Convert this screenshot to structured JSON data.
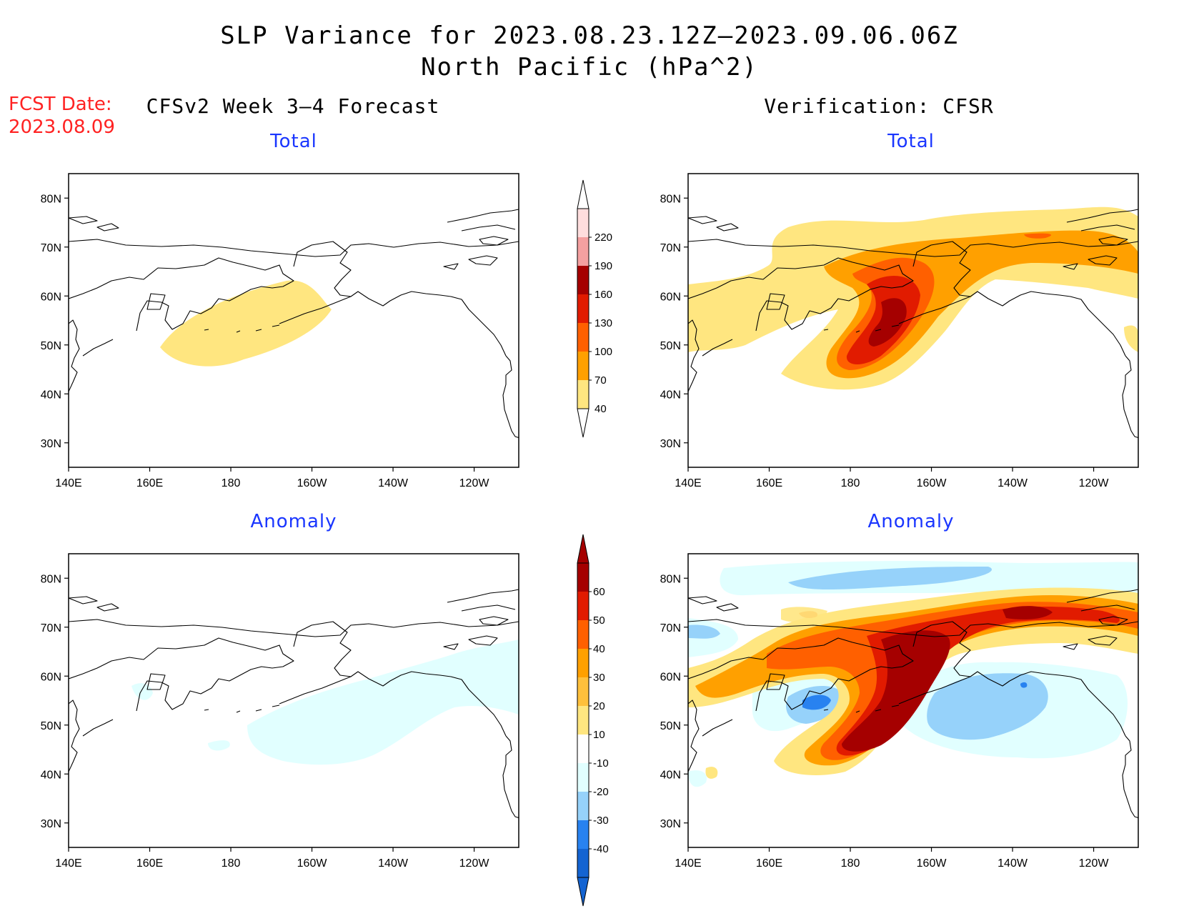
{
  "header": {
    "title_line1": "SLP Variance for 2023.08.23.12Z–2023.09.06.06Z",
    "title_line2": "North Pacific (hPa^2)",
    "fcst_date_label": "FCST Date:",
    "fcst_date_value": "2023.08.09",
    "left_column_title": "CFSv2 Week 3–4 Forecast",
    "right_column_title": "Verification: CFSR"
  },
  "panels": {
    "top_left_title": "Total",
    "top_right_title": "Total",
    "bottom_left_title": "Anomaly",
    "bottom_right_title": "Anomaly"
  },
  "axes": {
    "lon_labels": [
      "140E",
      "160E",
      "180",
      "160W",
      "140W",
      "120W"
    ],
    "lat_labels": [
      "80N",
      "70N",
      "60N",
      "50N",
      "40N",
      "30N"
    ],
    "lon_range": [
      140,
      251
    ],
    "lat_range": [
      25,
      85
    ]
  },
  "total_colorbar": {
    "levels": [
      "40",
      "70",
      "100",
      "130",
      "160",
      "190",
      "220"
    ],
    "colors": [
      "#ffe680",
      "#ffa000",
      "#ff6000",
      "#e11b00",
      "#a50000",
      "#f4a0a0",
      "#ffdede"
    ]
  },
  "anomaly_colorbar": {
    "levels": [
      "-40",
      "-30",
      "-20",
      "-10",
      "10",
      "20",
      "30",
      "40",
      "50",
      "60"
    ],
    "colors": [
      "#1464d2",
      "#2882f0",
      "#96d2fa",
      "#e1ffff",
      "#ffffff",
      "#ffe680",
      "#ffc03c",
      "#ffa000",
      "#ff6000",
      "#e11b00",
      "#a50000"
    ]
  },
  "chart_data": [
    {
      "type": "heatmap",
      "panel": "CFSv2 Week 3–4 Forecast – Total",
      "units": "hPa^2",
      "regions": [
        {
          "range": "40-70",
          "lon_range": [
            161,
            188
          ],
          "lat_range": [
            44,
            63
          ]
        }
      ]
    },
    {
      "type": "heatmap",
      "panel": "CFSv2 Week 3–4 Forecast – Anomaly",
      "units": "hPa^2",
      "regions": [
        {
          "range": "-20 to -10",
          "lon_range": [
            170,
            251
          ],
          "lat_range": [
            39,
            63
          ]
        },
        {
          "range": "-20 to -10",
          "lon_range": [
            158,
            162
          ],
          "lat_range": [
            52,
            56
          ]
        }
      ]
    },
    {
      "type": "heatmap",
      "panel": "Verification: CFSR – Total",
      "units": "hPa^2",
      "regions": [
        {
          "range": "40-70",
          "lon_range": [
            140,
            251
          ],
          "lat_range": [
            40,
            77
          ]
        },
        {
          "range": "70-100",
          "lon_range": [
            175,
            251
          ],
          "lat_range": [
            42,
            72
          ]
        },
        {
          "range": "100-130",
          "lon_range": [
            178,
            200
          ],
          "lat_range": [
            44,
            66
          ]
        },
        {
          "range": "130-160",
          "lon_range": [
            180,
            198
          ],
          "lat_range": [
            45,
            63
          ]
        },
        {
          "range": "160-190",
          "lon_range": [
            187,
            196
          ],
          "lat_range": [
            49,
            59
          ]
        }
      ]
    },
    {
      "type": "heatmap",
      "panel": "Verification: CFSR – Anomaly",
      "units": "hPa^2",
      "regions": [
        {
          "range": "10-20",
          "lon_range": [
            140,
            251
          ],
          "lat_range": [
            36,
            78
          ]
        },
        {
          "range": "30-40",
          "lon_range": [
            143,
            251
          ],
          "lat_range": [
            39,
            76
          ]
        },
        {
          "range": "50-60",
          "lon_range": [
            178,
            240
          ],
          "lat_range": [
            42,
            74
          ]
        },
        {
          "range": "-10 to -20",
          "lon_range": [
            150,
            251
          ],
          "lat_range": [
            37,
            83
          ]
        },
        {
          "range": "-20 to -30",
          "lon_range": [
            159,
            192
          ],
          "lat_range": [
            49,
            58
          ]
        },
        {
          "range": "-20 to -30",
          "lon_range": [
            200,
            237
          ],
          "lat_range": [
            47,
            61
          ]
        },
        {
          "range": "-30 to -40",
          "lon_range": [
            180,
            185
          ],
          "lat_range": [
            52,
            54
          ]
        }
      ]
    }
  ]
}
